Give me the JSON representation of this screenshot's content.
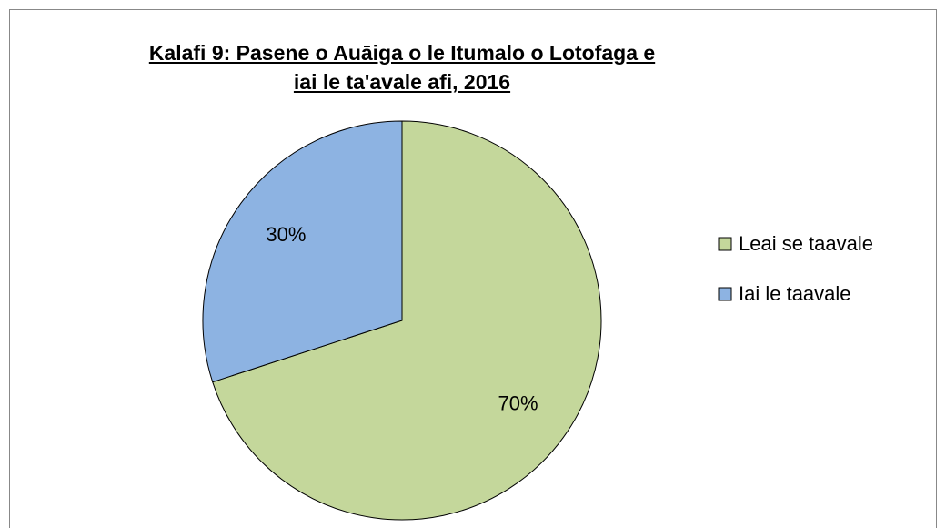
{
  "chart_data": {
    "type": "pie",
    "title": "Kalafi 9: Pasene o Auāiga o le Itumalo o Lotofaga e iai le ta'avale afi, 2016",
    "categories": [
      "Leai se taavale",
      "Iai le taavale"
    ],
    "values": [
      70,
      30
    ],
    "value_labels": [
      "70%",
      "30%"
    ],
    "colors": [
      "#c4d79b",
      "#8db3e2"
    ],
    "legend": "right"
  }
}
